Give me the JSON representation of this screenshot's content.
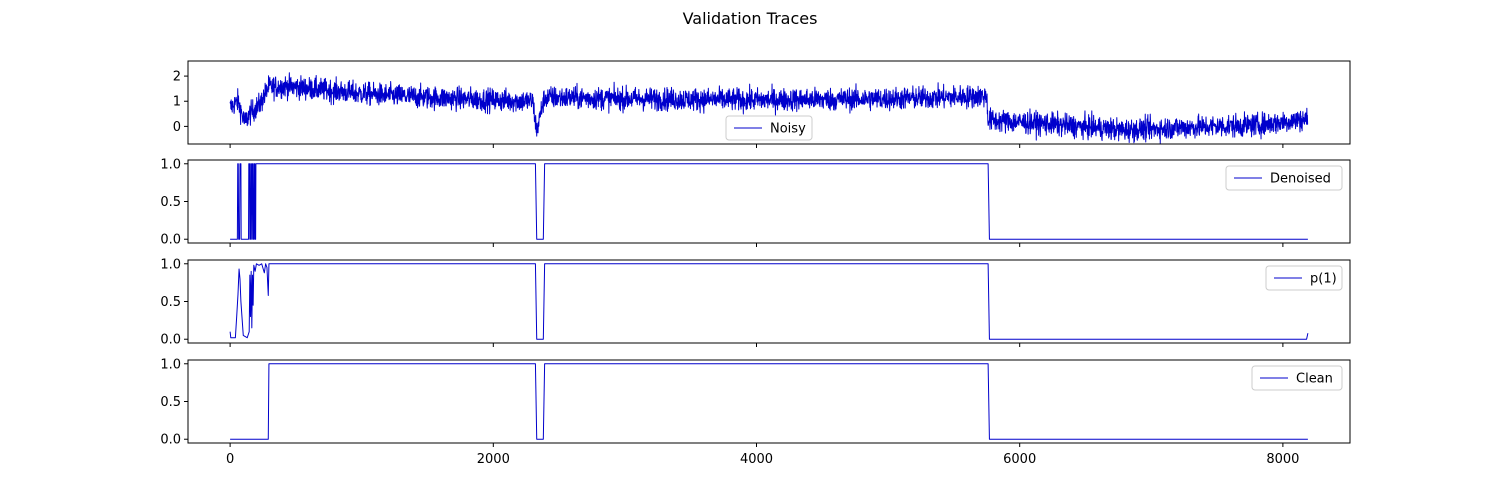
{
  "figure": {
    "title": "Validation Traces",
    "line_color": "#0000cc"
  },
  "chart_data": [
    {
      "type": "line",
      "name": "noisy",
      "legend": "Noisy",
      "legend_loc": "lower-center",
      "xlim": [
        -320,
        8510
      ],
      "ylim": [
        -0.7,
        2.6
      ],
      "yticks": [
        0,
        1,
        2
      ],
      "ytick_labels": [
        "0",
        "1",
        "2"
      ],
      "show_xtick_labels": false,
      "noise": true,
      "baseline_segments": [
        [
          0,
          0.75
        ],
        [
          60,
          1.0
        ],
        [
          110,
          0.15
        ],
        [
          150,
          0.5
        ],
        [
          230,
          0.9
        ],
        [
          290,
          1.55
        ],
        [
          420,
          1.6
        ],
        [
          1000,
          1.3
        ],
        [
          1500,
          1.15
        ],
        [
          2000,
          1.05
        ],
        [
          2300,
          1.0
        ],
        [
          2330,
          -0.2
        ],
        [
          2380,
          1.0
        ],
        [
          2400,
          1.15
        ],
        [
          3000,
          1.1
        ],
        [
          4000,
          1.05
        ],
        [
          5000,
          1.1
        ],
        [
          5750,
          1.2
        ],
        [
          5760,
          0.25
        ],
        [
          6200,
          0.1
        ],
        [
          6800,
          -0.15
        ],
        [
          7200,
          -0.05
        ],
        [
          7800,
          0.05
        ],
        [
          8190,
          0.3
        ]
      ]
    },
    {
      "type": "line",
      "name": "denoised",
      "legend": "Denoised",
      "legend_loc": "upper-right",
      "xlim": [
        -320,
        8510
      ],
      "ylim": [
        -0.05,
        1.05
      ],
      "yticks": [
        0,
        0.5,
        1
      ],
      "ytick_labels": [
        "0.0",
        "0.5",
        "1.0"
      ],
      "show_xtick_labels": false,
      "points": [
        [
          0,
          0
        ],
        [
          55,
          0
        ],
        [
          58,
          1
        ],
        [
          62,
          1
        ],
        [
          65,
          0
        ],
        [
          72,
          0
        ],
        [
          75,
          1
        ],
        [
          82,
          1
        ],
        [
          84,
          0
        ],
        [
          140,
          0
        ],
        [
          142,
          1
        ],
        [
          148,
          1
        ],
        [
          150,
          0
        ],
        [
          155,
          0
        ],
        [
          157,
          1
        ],
        [
          162,
          1
        ],
        [
          164,
          0
        ],
        [
          168,
          0
        ],
        [
          170,
          1
        ],
        [
          175,
          1
        ],
        [
          177,
          0
        ],
        [
          182,
          0
        ],
        [
          184,
          1
        ],
        [
          188,
          1
        ],
        [
          190,
          0
        ],
        [
          194,
          0
        ],
        [
          196,
          1
        ],
        [
          2320,
          1
        ],
        [
          2330,
          0
        ],
        [
          2380,
          0
        ],
        [
          2390,
          1
        ],
        [
          5760,
          1
        ],
        [
          5770,
          0
        ],
        [
          8190,
          0
        ]
      ]
    },
    {
      "type": "line",
      "name": "p1",
      "legend": "p(1)",
      "legend_loc": "upper-right",
      "xlim": [
        -320,
        8510
      ],
      "ylim": [
        -0.05,
        1.05
      ],
      "yticks": [
        0,
        0.5,
        1
      ],
      "ytick_labels": [
        "0.0",
        "0.5",
        "1.0"
      ],
      "show_xtick_labels": false,
      "points": [
        [
          0,
          0.1
        ],
        [
          5,
          0.02
        ],
        [
          40,
          0.02
        ],
        [
          50,
          0.3
        ],
        [
          60,
          0.6
        ],
        [
          68,
          0.93
        ],
        [
          75,
          0.8
        ],
        [
          82,
          0.5
        ],
        [
          90,
          0.3
        ],
        [
          100,
          0.05
        ],
        [
          130,
          0.02
        ],
        [
          145,
          0.1
        ],
        [
          150,
          0.85
        ],
        [
          155,
          0.3
        ],
        [
          160,
          0.9
        ],
        [
          165,
          0.15
        ],
        [
          170,
          0.85
        ],
        [
          175,
          0.45
        ],
        [
          180,
          0.98
        ],
        [
          190,
          0.9
        ],
        [
          200,
          1.0
        ],
        [
          220,
          0.98
        ],
        [
          240,
          1.0
        ],
        [
          260,
          0.88
        ],
        [
          270,
          1.0
        ],
        [
          280,
          0.95
        ],
        [
          290,
          0.58
        ],
        [
          295,
          1.0
        ],
        [
          2320,
          1.0
        ],
        [
          2330,
          0.0
        ],
        [
          2380,
          0.0
        ],
        [
          2390,
          1.0
        ],
        [
          5760,
          1.0
        ],
        [
          5770,
          0.0
        ],
        [
          8180,
          0.0
        ],
        [
          8190,
          0.08
        ]
      ]
    },
    {
      "type": "line",
      "name": "clean",
      "legend": "Clean",
      "legend_loc": "upper-right",
      "xlim": [
        -320,
        8510
      ],
      "ylim": [
        -0.05,
        1.05
      ],
      "yticks": [
        0,
        0.5,
        1
      ],
      "ytick_labels": [
        "0.0",
        "0.5",
        "1.0"
      ],
      "show_xtick_labels": true,
      "points": [
        [
          0,
          0
        ],
        [
          290,
          0
        ],
        [
          295,
          1
        ],
        [
          2320,
          1
        ],
        [
          2330,
          0
        ],
        [
          2380,
          0
        ],
        [
          2390,
          1
        ],
        [
          5760,
          1
        ],
        [
          5770,
          0
        ],
        [
          8190,
          0
        ]
      ]
    }
  ],
  "xticks": [
    0,
    2000,
    4000,
    6000,
    8000
  ],
  "xtick_labels": [
    "0",
    "2000",
    "4000",
    "6000",
    "8000"
  ]
}
